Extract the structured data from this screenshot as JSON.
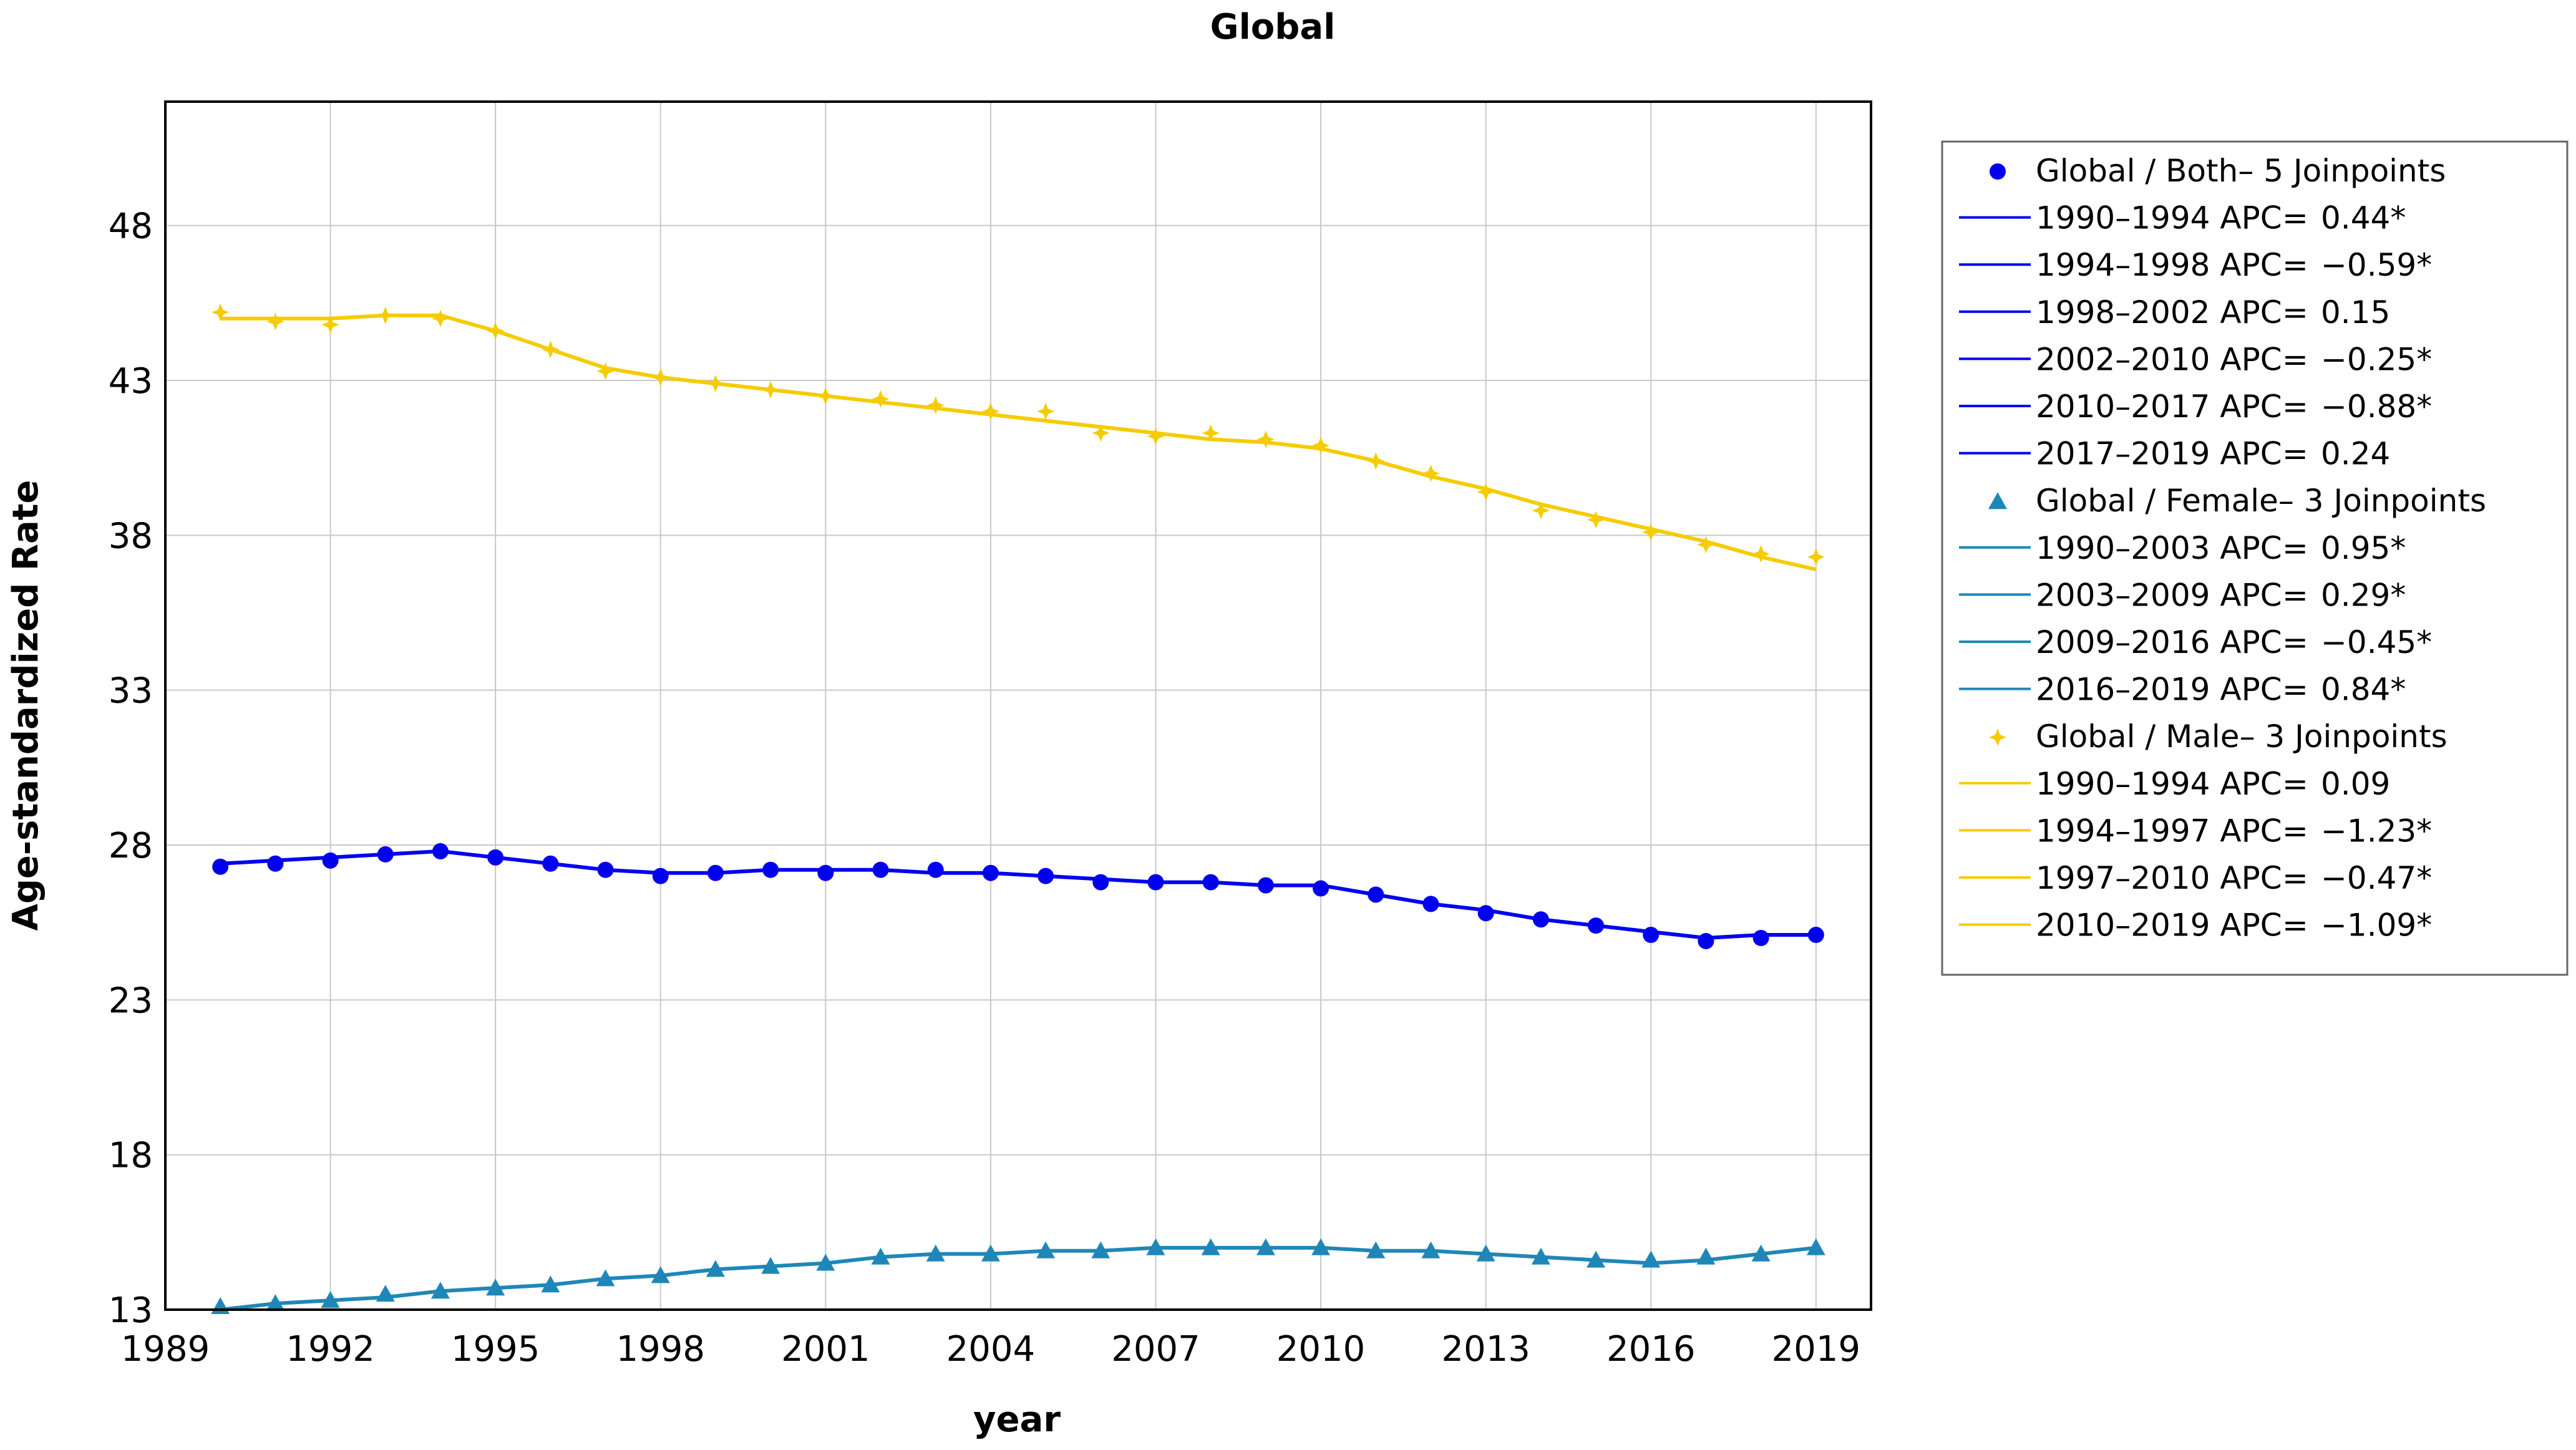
{
  "chart_data": {
    "type": "line",
    "title": "Global",
    "xlabel": "year",
    "ylabel": "Age-standardized Rate",
    "xlim": [
      1989,
      2020
    ],
    "ylim": [
      13,
      52
    ],
    "xticks": [
      1989,
      1992,
      1995,
      1998,
      2001,
      2004,
      2007,
      2010,
      2013,
      2016,
      2019
    ],
    "yticks": [
      13,
      18,
      23,
      28,
      33,
      38,
      43,
      48
    ],
    "grid": true,
    "legend_position": "right",
    "x": [
      1990,
      1991,
      1992,
      1993,
      1994,
      1995,
      1996,
      1997,
      1998,
      1999,
      2000,
      2001,
      2002,
      2003,
      2004,
      2005,
      2006,
      2007,
      2008,
      2009,
      2010,
      2011,
      2012,
      2013,
      2014,
      2015,
      2016,
      2017,
      2018,
      2019
    ],
    "series": [
      {
        "name": "Global / Both",
        "legend": "Global / Both– 5 Joinpoints",
        "color": "#0000ee",
        "marker": "circle",
        "observed": [
          27.3,
          27.4,
          27.5,
          27.7,
          27.8,
          27.6,
          27.4,
          27.2,
          27.0,
          27.1,
          27.2,
          27.1,
          27.2,
          27.2,
          27.1,
          27.0,
          26.8,
          26.8,
          26.8,
          26.7,
          26.6,
          26.4,
          26.1,
          25.8,
          25.6,
          25.4,
          25.1,
          24.9,
          25.0,
          25.1
        ],
        "fitted": [
          27.4,
          27.5,
          27.6,
          27.7,
          27.8,
          27.6,
          27.4,
          27.2,
          27.1,
          27.1,
          27.2,
          27.2,
          27.2,
          27.1,
          27.1,
          27.0,
          26.9,
          26.8,
          26.8,
          26.7,
          26.7,
          26.4,
          26.1,
          25.9,
          25.6,
          25.4,
          25.2,
          25.0,
          25.1,
          25.1
        ],
        "segments": [
          {
            "label": "1990–1994 APC",
            "eq": "=",
            "value": "0.44*"
          },
          {
            "label": "1994–1998 APC",
            "eq": "=",
            "value": "−0.59*"
          },
          {
            "label": "1998–2002 APC",
            "eq": "=",
            "value": "0.15"
          },
          {
            "label": "2002–2010 APC",
            "eq": "=",
            "value": "−0.25*"
          },
          {
            "label": "2010–2017 APC",
            "eq": "=",
            "value": "−0.88*"
          },
          {
            "label": "2017–2019 APC",
            "eq": "=",
            "value": "0.24"
          }
        ]
      },
      {
        "name": "Global / Female",
        "legend": "Global / Female– 3 Joinpoints",
        "color": "#1f87b7",
        "marker": "triangle",
        "observed": [
          13.1,
          13.2,
          13.3,
          13.5,
          13.6,
          13.7,
          13.8,
          14.0,
          14.1,
          14.3,
          14.4,
          14.5,
          14.7,
          14.8,
          14.8,
          14.9,
          14.9,
          15.0,
          15.0,
          15.0,
          15.0,
          14.9,
          14.9,
          14.8,
          14.7,
          14.6,
          14.6,
          14.7,
          14.8,
          15.0
        ],
        "fitted": [
          13.0,
          13.2,
          13.3,
          13.4,
          13.6,
          13.7,
          13.8,
          14.0,
          14.1,
          14.3,
          14.4,
          14.5,
          14.7,
          14.8,
          14.8,
          14.9,
          14.9,
          15.0,
          15.0,
          15.0,
          15.0,
          14.9,
          14.9,
          14.8,
          14.7,
          14.6,
          14.5,
          14.6,
          14.8,
          15.0
        ],
        "segments": [
          {
            "label": "1990–2003 APC",
            "eq": "=",
            "value": "0.95*"
          },
          {
            "label": "2003–2009 APC",
            "eq": "=",
            "value": "0.29*"
          },
          {
            "label": "2009–2016 APC",
            "eq": "=",
            "value": "−0.45*"
          },
          {
            "label": "2016–2019 APC",
            "eq": "=",
            "value": "0.84*"
          }
        ]
      },
      {
        "name": "Global / Male",
        "legend": "Global / Male– 3 Joinpoints",
        "color": "#f5cc00",
        "marker": "star",
        "observed": [
          45.2,
          44.9,
          44.8,
          45.1,
          45.0,
          44.6,
          44.0,
          43.3,
          43.1,
          42.9,
          42.7,
          42.5,
          42.4,
          42.2,
          42.0,
          42.0,
          41.3,
          41.2,
          41.3,
          41.1,
          40.9,
          40.4,
          40.0,
          39.4,
          38.8,
          38.5,
          38.1,
          37.7,
          37.4,
          37.3
        ],
        "fitted": [
          45.0,
          45.0,
          45.0,
          45.1,
          45.1,
          44.6,
          44.0,
          43.4,
          43.1,
          42.9,
          42.7,
          42.5,
          42.3,
          42.1,
          41.9,
          41.7,
          41.5,
          41.3,
          41.1,
          41.0,
          40.8,
          40.4,
          39.9,
          39.5,
          39.0,
          38.6,
          38.2,
          37.8,
          37.3,
          36.9
        ],
        "segments": [
          {
            "label": "1990–1994 APC",
            "eq": "=",
            "value": "0.09"
          },
          {
            "label": "1994–1997 APC",
            "eq": "=",
            "value": "−1.23*"
          },
          {
            "label": "1997–2010 APC",
            "eq": "=",
            "value": "−0.47*"
          },
          {
            "label": "2010–2019 APC",
            "eq": "=",
            "value": "−1.09*"
          }
        ]
      }
    ]
  }
}
